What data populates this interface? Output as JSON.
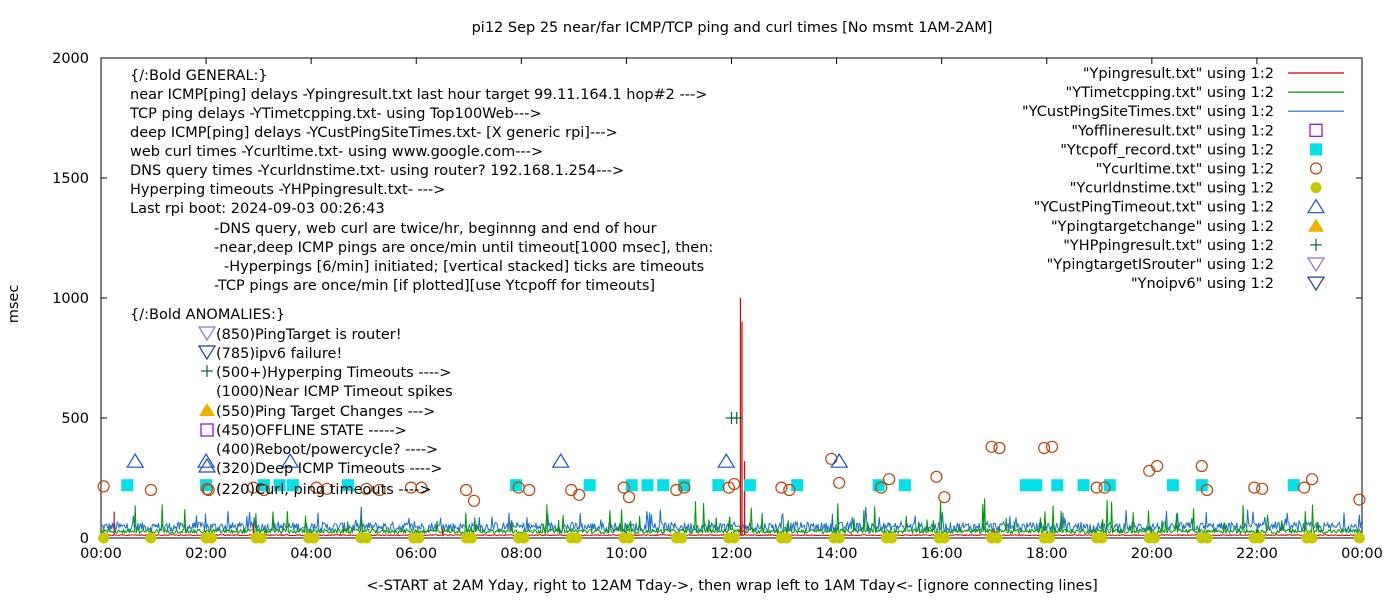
{
  "chart_data": {
    "type": "line",
    "title": "pi12 Sep 25  near/far ICMP/TCP ping and curl times [No msmt 1AM-2AM]",
    "xlabel": "<-START at 2AM Yday, right to 12AM Tday->, then wrap left to 1AM Tday<- [ignore connecting lines]",
    "ylabel": "msec",
    "xlim": [
      0,
      24
    ],
    "ylim": [
      0,
      2000
    ],
    "x_ticks": [
      {
        "v": 0,
        "label": "00:00"
      },
      {
        "v": 2,
        "label": "02:00"
      },
      {
        "v": 4,
        "label": "04:00"
      },
      {
        "v": 6,
        "label": "06:00"
      },
      {
        "v": 8,
        "label": "08:00"
      },
      {
        "v": 10,
        "label": "10:00"
      },
      {
        "v": 12,
        "label": "12:00"
      },
      {
        "v": 14,
        "label": "14:00"
      },
      {
        "v": 16,
        "label": "16:00"
      },
      {
        "v": 18,
        "label": "18:00"
      },
      {
        "v": 20,
        "label": "20:00"
      },
      {
        "v": 22,
        "label": "22:00"
      },
      {
        "v": 24,
        "label": "00:00"
      }
    ],
    "y_ticks": [
      {
        "v": 0,
        "label": "0"
      },
      {
        "v": 500,
        "label": "500"
      },
      {
        "v": 1000,
        "label": "1000"
      },
      {
        "v": 1500,
        "label": "1500"
      },
      {
        "v": 2000,
        "label": "2000"
      }
    ],
    "grid": false,
    "legend_position": "top-right",
    "legend": [
      {
        "label": "\"Ypingresult.txt\" using 1:2",
        "kind": "line",
        "color": "#cc0000"
      },
      {
        "label": "\"YTimetcpping.txt\" using 1:2",
        "kind": "line",
        "color": "#009900"
      },
      {
        "label": "\"YCustPingSiteTimes.txt\" using 1:2",
        "kind": "line",
        "color": "#1a6fcc"
      },
      {
        "label": "\"Yofflineresult.txt\" using 1:2",
        "kind": "open-square",
        "color": "#9400d3"
      },
      {
        "label": "\"Ytcpoff_record.txt\" using 1:2",
        "kind": "filled-square",
        "color": "#00e0e8"
      },
      {
        "label": "\"Ycurltime.txt\" using 1:2",
        "kind": "open-circle",
        "color": "#b8450b"
      },
      {
        "label": "\"Ycurldnstime.txt\" using 1:2",
        "kind": "filled-circle",
        "color": "#c8c800"
      },
      {
        "label": "\"YCustPingTimeout.txt\" using 1:2",
        "kind": "open-triangle",
        "color": "#1a4fcc"
      },
      {
        "label": "\"Ypingtargetchange\" using 1:2",
        "kind": "filled-triangle",
        "color": "#f0b000"
      },
      {
        "label": "\"YHPpingresult.txt\" using 1:2",
        "kind": "plus",
        "color": "#006633"
      },
      {
        "label": "\"YpingtargetISrouter\" using 1:2",
        "kind": "open-down-triangle",
        "color": "#9370db"
      },
      {
        "label": "\"Ynoipv6\" using 1:2",
        "kind": "open-down-triangle",
        "color": "#1a3f99"
      }
    ],
    "annotations": [
      "{/:Bold GENERAL:}",
      "near ICMP[ping] delays -Ypingresult.txt last hour target 99.11.164.1 hop#2 --->",
      "TCP ping delays -YTimetcpping.txt- using Top100Web--->",
      "deep ICMP[ping] delays -YCustPingSiteTimes.txt- [X generic rpi]--->",
      "web curl times -Ycurltime.txt- using www.google.com--->",
      "DNS query times -Ycurldnstime.txt- using router? 192.168.1.254--->",
      "Hyperping timeouts -YHPpingresult.txt- --->",
      "Last rpi boot: 2024-09-03 00:26:43",
      "-DNS query, web curl are twice/hr, beginnng and end of hour",
      "-near,deep ICMP pings are once/min until timeout[1000 msec], then:",
      "-Hyperpings [6/min] initiated; [vertical stacked] ticks are timeouts",
      "-TCP pings are once/min [if plotted][use Ytcpoff for timeouts]",
      "{/:Bold ANOMALIES:}",
      "(850)PingTarget is router!",
      "(785)ipv6 failure!",
      "(500+)Hyperping Timeouts ---->",
      "(1000)Near ICMP Timeout spikes",
      "(550)Ping Target Changes --->",
      "(450)OFFLINE STATE ----->",
      "(400)Reboot/powercycle? ---->",
      "(320)Deep ICMP Timeouts ---->",
      "(220)Curl, ping timeouts ---->"
    ],
    "series": [
      {
        "name": "\"Ypingresult.txt\" using 1:2",
        "baseline": 12,
        "spikes": [
          {
            "x": 0.25,
            "y": 110
          },
          {
            "x": 2.9,
            "y": 60
          },
          {
            "x": 6.5,
            "y": 40
          },
          {
            "x": 12.17,
            "y": 1000
          },
          {
            "x": 12.2,
            "y": 900
          },
          {
            "x": 12.25,
            "y": 320
          },
          {
            "x": 17.0,
            "y": 40
          }
        ]
      },
      {
        "name": "\"YTimetcpping.txt\" using 1:2",
        "baseline": 28
      },
      {
        "name": "\"YCustPingSiteTimes.txt\" using 1:2",
        "baseline": 42
      },
      {
        "name": "\"Ytcpoff_record.txt\" using 1:2",
        "points": [
          {
            "x": 0.5,
            "y": 220
          },
          {
            "x": 2.0,
            "y": 220
          },
          {
            "x": 3.1,
            "y": 220
          },
          {
            "x": 3.4,
            "y": 220
          },
          {
            "x": 3.65,
            "y": 220
          },
          {
            "x": 4.7,
            "y": 220
          },
          {
            "x": 7.9,
            "y": 220
          },
          {
            "x": 9.3,
            "y": 220
          },
          {
            "x": 10.1,
            "y": 220
          },
          {
            "x": 10.4,
            "y": 220
          },
          {
            "x": 10.7,
            "y": 220
          },
          {
            "x": 11.1,
            "y": 220
          },
          {
            "x": 11.75,
            "y": 220
          },
          {
            "x": 12.35,
            "y": 220
          },
          {
            "x": 13.25,
            "y": 220
          },
          {
            "x": 14.8,
            "y": 220
          },
          {
            "x": 15.3,
            "y": 220
          },
          {
            "x": 17.6,
            "y": 220
          },
          {
            "x": 17.8,
            "y": 220
          },
          {
            "x": 18.2,
            "y": 220
          },
          {
            "x": 18.7,
            "y": 220
          },
          {
            "x": 19.2,
            "y": 220
          },
          {
            "x": 20.4,
            "y": 220
          },
          {
            "x": 20.95,
            "y": 220
          },
          {
            "x": 22.7,
            "y": 220
          }
        ]
      },
      {
        "name": "\"Ycurltime.txt\" using 1:2",
        "points": [
          {
            "x": 0.05,
            "y": 215
          },
          {
            "x": 0.95,
            "y": 200
          },
          {
            "x": 2.05,
            "y": 200
          },
          {
            "x": 2.9,
            "y": 210
          },
          {
            "x": 3.1,
            "y": 200
          },
          {
            "x": 4.1,
            "y": 210
          },
          {
            "x": 4.3,
            "y": 205
          },
          {
            "x": 5.05,
            "y": 205
          },
          {
            "x": 5.3,
            "y": 200
          },
          {
            "x": 5.9,
            "y": 210
          },
          {
            "x": 6.1,
            "y": 210
          },
          {
            "x": 6.95,
            "y": 200
          },
          {
            "x": 7.1,
            "y": 155
          },
          {
            "x": 7.95,
            "y": 210
          },
          {
            "x": 8.15,
            "y": 200
          },
          {
            "x": 8.95,
            "y": 200
          },
          {
            "x": 9.1,
            "y": 180
          },
          {
            "x": 9.95,
            "y": 210
          },
          {
            "x": 10.05,
            "y": 170
          },
          {
            "x": 10.95,
            "y": 200
          },
          {
            "x": 11.1,
            "y": 210
          },
          {
            "x": 11.95,
            "y": 210
          },
          {
            "x": 12.05,
            "y": 225
          },
          {
            "x": 12.95,
            "y": 210
          },
          {
            "x": 13.1,
            "y": 200
          },
          {
            "x": 13.9,
            "y": 330
          },
          {
            "x": 14.05,
            "y": 230
          },
          {
            "x": 14.85,
            "y": 210
          },
          {
            "x": 15.0,
            "y": 245
          },
          {
            "x": 15.9,
            "y": 255
          },
          {
            "x": 16.05,
            "y": 170
          },
          {
            "x": 16.95,
            "y": 380
          },
          {
            "x": 17.1,
            "y": 375
          },
          {
            "x": 17.95,
            "y": 375
          },
          {
            "x": 18.1,
            "y": 380
          },
          {
            "x": 18.95,
            "y": 210
          },
          {
            "x": 19.1,
            "y": 210
          },
          {
            "x": 19.95,
            "y": 280
          },
          {
            "x": 20.1,
            "y": 300
          },
          {
            "x": 20.95,
            "y": 300
          },
          {
            "x": 21.05,
            "y": 200
          },
          {
            "x": 21.95,
            "y": 210
          },
          {
            "x": 22.1,
            "y": 205
          },
          {
            "x": 22.9,
            "y": 210
          },
          {
            "x": 23.05,
            "y": 245
          },
          {
            "x": 23.95,
            "y": 160
          }
        ]
      },
      {
        "name": "\"Ycurldnstime.txt\" using 1:2",
        "points": [
          {
            "x": 0.05,
            "y": 0
          },
          {
            "x": 0.95,
            "y": 0
          },
          {
            "x": 2.0,
            "y": 0
          },
          {
            "x": 2.1,
            "y": 0
          },
          {
            "x": 2.95,
            "y": 0
          },
          {
            "x": 3.05,
            "y": 0
          },
          {
            "x": 3.95,
            "y": 0
          },
          {
            "x": 4.05,
            "y": 0
          },
          {
            "x": 4.95,
            "y": 0
          },
          {
            "x": 5.05,
            "y": 0
          },
          {
            "x": 5.95,
            "y": 0
          },
          {
            "x": 6.05,
            "y": 0
          },
          {
            "x": 6.95,
            "y": 0
          },
          {
            "x": 7.05,
            "y": 0
          },
          {
            "x": 7.95,
            "y": 0
          },
          {
            "x": 8.05,
            "y": 0
          },
          {
            "x": 8.95,
            "y": 0
          },
          {
            "x": 9.05,
            "y": 0
          },
          {
            "x": 9.95,
            "y": 0
          },
          {
            "x": 10.05,
            "y": 0
          },
          {
            "x": 10.95,
            "y": 0
          },
          {
            "x": 11.05,
            "y": 0
          },
          {
            "x": 11.95,
            "y": 0
          },
          {
            "x": 12.05,
            "y": 0
          },
          {
            "x": 12.95,
            "y": 0
          },
          {
            "x": 13.05,
            "y": 0
          },
          {
            "x": 13.95,
            "y": 0
          },
          {
            "x": 14.05,
            "y": 0
          },
          {
            "x": 14.95,
            "y": 0
          },
          {
            "x": 15.05,
            "y": 0
          },
          {
            "x": 15.95,
            "y": 0
          },
          {
            "x": 16.05,
            "y": 0
          },
          {
            "x": 16.95,
            "y": 0
          },
          {
            "x": 17.05,
            "y": 0
          },
          {
            "x": 17.95,
            "y": 0
          },
          {
            "x": 18.05,
            "y": 0
          },
          {
            "x": 18.95,
            "y": 0
          },
          {
            "x": 19.05,
            "y": 0
          },
          {
            "x": 19.95,
            "y": 0
          },
          {
            "x": 20.05,
            "y": 0
          },
          {
            "x": 20.95,
            "y": 0
          },
          {
            "x": 21.05,
            "y": 0
          },
          {
            "x": 21.95,
            "y": 0
          },
          {
            "x": 22.05,
            "y": 0
          },
          {
            "x": 22.95,
            "y": 0
          },
          {
            "x": 23.05,
            "y": 0
          },
          {
            "x": 23.95,
            "y": 0
          }
        ]
      },
      {
        "name": "\"YCustPingTimeout.txt\" using 1:2",
        "points": [
          {
            "x": 0.65,
            "y": 320
          },
          {
            "x": 2.0,
            "y": 320
          },
          {
            "x": 3.6,
            "y": 320
          },
          {
            "x": 8.75,
            "y": 320
          },
          {
            "x": 11.9,
            "y": 320
          },
          {
            "x": 14.05,
            "y": 320
          }
        ]
      },
      {
        "name": "\"YHPpingresult.txt\" using 1:2",
        "points": [
          {
            "x": 12.0,
            "y": 500
          },
          {
            "x": 12.1,
            "y": 500
          }
        ]
      }
    ]
  }
}
